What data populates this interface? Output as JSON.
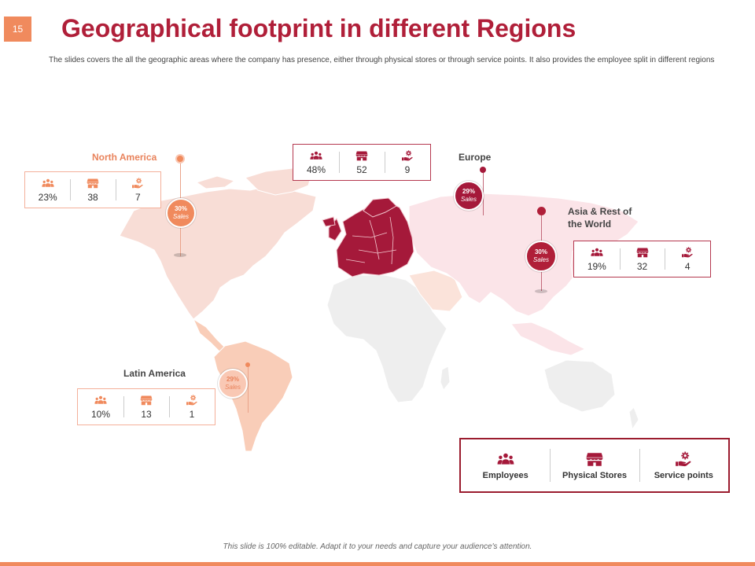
{
  "slide": {
    "number": "15",
    "title": "Geographical footprint in different Regions",
    "subtitle": "The slides covers the all the geographic areas where the company has presence, either through physical stores or through service points. It also provides the employee split in different regions",
    "footer": "This slide is 100% editable. Adapt it to your needs and capture your audience's attention."
  },
  "colors": {
    "brand": "#b01f39",
    "north_america": "#f08a5d",
    "latin_america": "#f4a582",
    "europe": "#a5193a",
    "asia": "#b01f39",
    "accent_bar": "#f08a5d"
  },
  "icons": {
    "employees": "employees-icon",
    "stores": "store-icon",
    "service": "service-hand-icon"
  },
  "regions": {
    "north_america": {
      "name": "North America",
      "sales_pct": "30%",
      "sales_label": "Sales",
      "employees": "23%",
      "stores": "38",
      "service_points": "7"
    },
    "europe": {
      "name": "Europe",
      "sales_pct": "29%",
      "sales_label": "Sales",
      "employees": "48%",
      "stores": "52",
      "service_points": "9"
    },
    "asia": {
      "name_line1": "Asia & Rest of",
      "name_line2": "the World",
      "sales_pct": "30%",
      "sales_label": "Sales",
      "employees": "19%",
      "stores": "32",
      "service_points": "4"
    },
    "latin_america": {
      "name": "Latin America",
      "sales_pct": "29%",
      "sales_label": "Sales",
      "employees": "10%",
      "stores": "13",
      "service_points": "1"
    }
  },
  "legend": {
    "employees": "Employees",
    "stores": "Physical Stores",
    "service": "Service points"
  }
}
